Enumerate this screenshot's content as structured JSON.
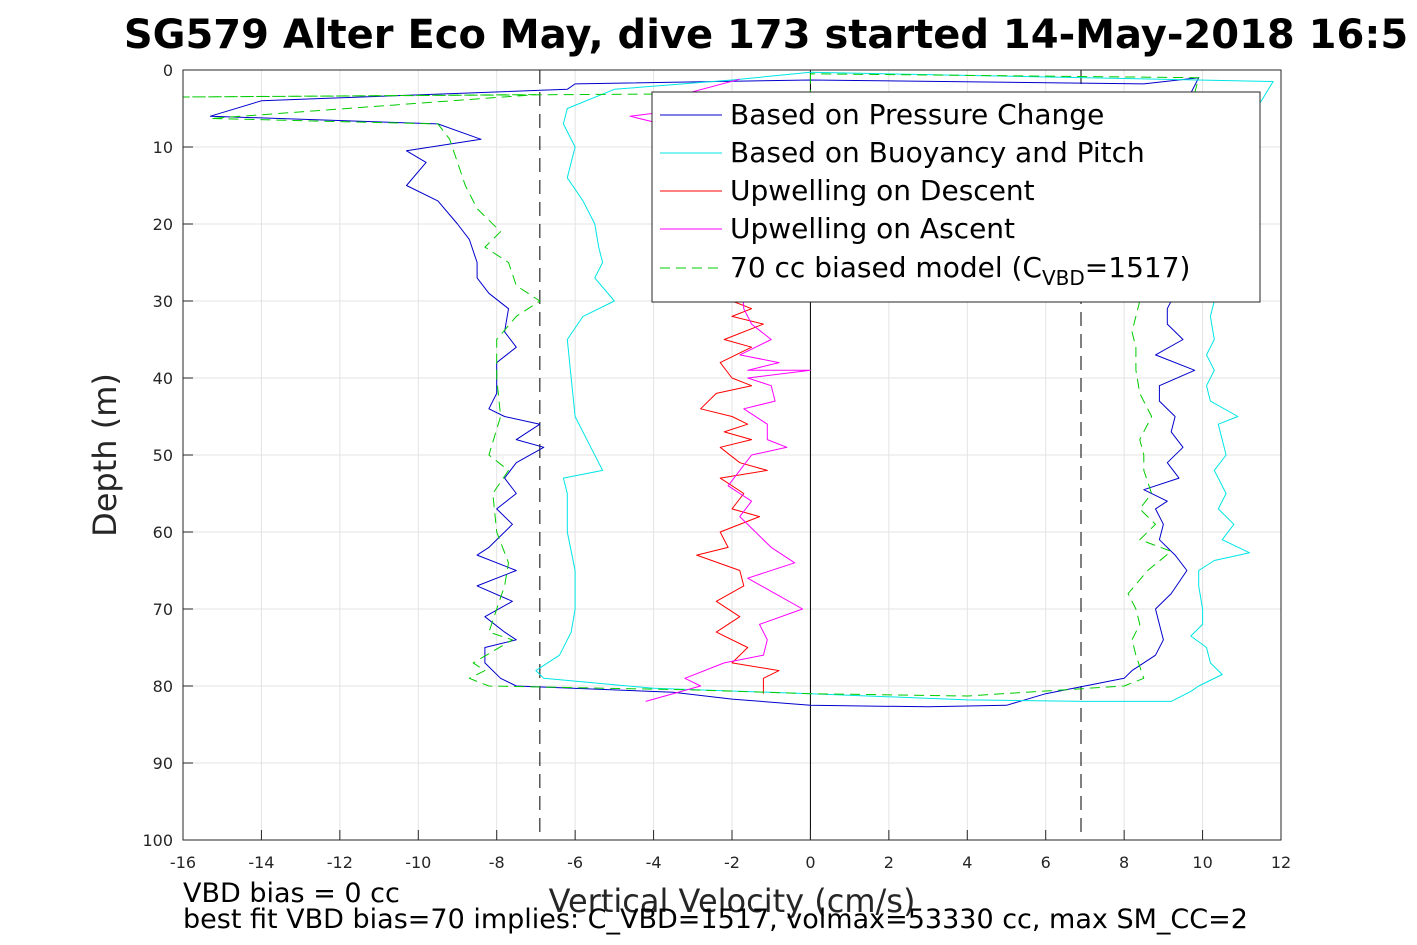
{
  "chart_data": {
    "type": "line",
    "title": "SG579 Alter Eco May, dive 173 started 14-May-2018 16:5",
    "xlabel": "Vertical Velocity (cm/s)",
    "ylabel": "Depth (m)",
    "xlim": [
      -16,
      12
    ],
    "ylim": [
      0,
      100
    ],
    "y_reversed": true,
    "grid": true,
    "legend_position": "top-right",
    "xticks": [
      "-16",
      "-14",
      "-12",
      "-10",
      "-8",
      "-6",
      "-4",
      "-2",
      "0",
      "2",
      "4",
      "6",
      "8",
      "10",
      "12"
    ],
    "yticks": [
      "0",
      "10",
      "20",
      "30",
      "40",
      "50",
      "60",
      "70",
      "80",
      "90",
      "100"
    ],
    "reference_lines": {
      "vertical_solid": [
        0
      ],
      "vertical_dashed": [
        -6.9,
        6.9
      ]
    },
    "legend": {
      "pressure": "Based on Pressure Change",
      "buoyancy": "Based on Buoyancy and Pitch",
      "up_descent": "Upwelling on Descent",
      "up_ascent": "Upwelling on Ascent",
      "model_prefix": "70 cc biased model (C",
      "model_sub": "VBD",
      "model_suffix": "=1517)"
    },
    "series": [
      {
        "name": "Based on Pressure Change",
        "color": "#0000cc",
        "dash": false,
        "points": [
          [
            0,
            1.3
          ],
          [
            -6,
            1.8
          ],
          [
            -6.2,
            2.5
          ],
          [
            -14,
            4
          ],
          [
            -15.3,
            6
          ],
          [
            -9.5,
            7
          ],
          [
            -8.4,
            9
          ],
          [
            -10.3,
            10.5
          ],
          [
            -9.8,
            12
          ],
          [
            -10.3,
            15
          ],
          [
            -9.5,
            17
          ],
          [
            -9,
            20
          ],
          [
            -8.7,
            22
          ],
          [
            -8.5,
            25
          ],
          [
            -8.5,
            27
          ],
          [
            -8.2,
            29
          ],
          [
            -7.7,
            31
          ],
          [
            -7.8,
            34
          ],
          [
            -7.5,
            36
          ],
          [
            -8,
            38
          ],
          [
            -8,
            42
          ],
          [
            -8.2,
            44
          ],
          [
            -7.8,
            45
          ],
          [
            -6.9,
            46
          ],
          [
            -7.5,
            48
          ],
          [
            -6.8,
            49
          ],
          [
            -7.5,
            51
          ],
          [
            -7.8,
            53
          ],
          [
            -7.5,
            55
          ],
          [
            -8,
            57
          ],
          [
            -7.6,
            59
          ],
          [
            -8.2,
            62
          ],
          [
            -8.5,
            63
          ],
          [
            -7.5,
            65
          ],
          [
            -8.5,
            67
          ],
          [
            -7.6,
            69
          ],
          [
            -8.3,
            71
          ],
          [
            -7.8,
            73
          ],
          [
            -7.5,
            74
          ],
          [
            -8.3,
            75
          ],
          [
            -8.3,
            77
          ],
          [
            -7.9,
            79
          ],
          [
            -7.5,
            80
          ],
          [
            -3.5,
            80.8
          ],
          [
            -2,
            81.7
          ],
          [
            0,
            82.5
          ],
          [
            3,
            82.7
          ],
          [
            5,
            82.5
          ],
          [
            6,
            81
          ],
          [
            7,
            80
          ],
          [
            8,
            79
          ],
          [
            8.2,
            78
          ],
          [
            8.8,
            76
          ],
          [
            9,
            74
          ],
          [
            8.9,
            72
          ],
          [
            8.8,
            70
          ],
          [
            9.2,
            68
          ],
          [
            9.6,
            65
          ],
          [
            9.3,
            63
          ],
          [
            8.9,
            61
          ],
          [
            9,
            59
          ],
          [
            8.8,
            57
          ],
          [
            9.1,
            56
          ],
          [
            8.5,
            54.5
          ],
          [
            9.4,
            53
          ],
          [
            9.1,
            51
          ],
          [
            9.5,
            49
          ],
          [
            9.2,
            47
          ],
          [
            9.3,
            45
          ],
          [
            8.9,
            43
          ],
          [
            8.9,
            41
          ],
          [
            9.8,
            39
          ],
          [
            8.8,
            37
          ],
          [
            9.5,
            35
          ],
          [
            9.1,
            33
          ],
          [
            9.1,
            31
          ],
          [
            9.3,
            29
          ],
          [
            9.5,
            22
          ],
          [
            9.7,
            15
          ],
          [
            9.4,
            8
          ],
          [
            9.7,
            3
          ],
          [
            9.9,
            1
          ],
          [
            8.5,
            1.8
          ],
          [
            0,
            1.3
          ]
        ]
      },
      {
        "name": "Based on Buoyancy and Pitch",
        "color": "#00e5e5",
        "dash": false,
        "points": [
          [
            0,
            0.3
          ],
          [
            -2,
            1.3
          ],
          [
            -5,
            2.5
          ],
          [
            -6.2,
            5
          ],
          [
            -6.3,
            7
          ],
          [
            -6,
            10
          ],
          [
            -6.2,
            14
          ],
          [
            -5.8,
            17
          ],
          [
            -5.5,
            20
          ],
          [
            -5.4,
            23
          ],
          [
            -5.3,
            25
          ],
          [
            -5.5,
            27
          ],
          [
            -5,
            30
          ],
          [
            -5.8,
            32
          ],
          [
            -6.2,
            35
          ],
          [
            -6.1,
            40
          ],
          [
            -6,
            45
          ],
          [
            -5.6,
            49
          ],
          [
            -5.3,
            52
          ],
          [
            -6.3,
            53
          ],
          [
            -6.2,
            55
          ],
          [
            -6.2,
            60
          ],
          [
            -6,
            65
          ],
          [
            -6,
            70
          ],
          [
            -6.1,
            73
          ],
          [
            -6.4,
            76
          ],
          [
            -7,
            78
          ],
          [
            -6.8,
            79
          ],
          [
            -4,
            80.3
          ],
          [
            0,
            81
          ],
          [
            4,
            81.8
          ],
          [
            7,
            82
          ],
          [
            9.2,
            82
          ],
          [
            9.7,
            80.7
          ],
          [
            9.9,
            80
          ],
          [
            10.5,
            78.5
          ],
          [
            10.2,
            77
          ],
          [
            10.1,
            75
          ],
          [
            9.7,
            73.5
          ],
          [
            10,
            72
          ],
          [
            10,
            70
          ],
          [
            9.9,
            67
          ],
          [
            9.9,
            65
          ],
          [
            10.3,
            63.7
          ],
          [
            11.2,
            62.7
          ],
          [
            10.5,
            61
          ],
          [
            10.8,
            59
          ],
          [
            10.4,
            57
          ],
          [
            10.6,
            55
          ],
          [
            10.3,
            52
          ],
          [
            10.6,
            50
          ],
          [
            10.5,
            48
          ],
          [
            10.4,
            46
          ],
          [
            10.9,
            45
          ],
          [
            10.2,
            43
          ],
          [
            10.1,
            41
          ],
          [
            10.3,
            39
          ],
          [
            10.1,
            37
          ],
          [
            10.3,
            35
          ],
          [
            10.2,
            32
          ],
          [
            10.3,
            30
          ],
          [
            10.7,
            26
          ],
          [
            10.5,
            21
          ],
          [
            10.3,
            15
          ],
          [
            10.7,
            9
          ],
          [
            11.5,
            4
          ],
          [
            11.8,
            1.5
          ],
          [
            0,
            0.3
          ]
        ]
      },
      {
        "name": "Upwelling on Descent",
        "color": "#ff0000",
        "dash": false,
        "points": [
          [
            -2,
            30
          ],
          [
            -1.5,
            31
          ],
          [
            -2,
            32
          ],
          [
            -1.2,
            33
          ],
          [
            -2.2,
            35
          ],
          [
            -1.5,
            36
          ],
          [
            -2.3,
            38
          ],
          [
            -2,
            40
          ],
          [
            -1.5,
            41
          ],
          [
            -2.4,
            42
          ],
          [
            -2.8,
            44
          ],
          [
            -2,
            45
          ],
          [
            -1.6,
            46
          ],
          [
            -2.2,
            47
          ],
          [
            -1.5,
            48
          ],
          [
            -2.3,
            49
          ],
          [
            -1.8,
            51
          ],
          [
            -1.1,
            52
          ],
          [
            -2.3,
            53
          ],
          [
            -1.7,
            55
          ],
          [
            -2,
            57
          ],
          [
            -1.3,
            58
          ],
          [
            -2.3,
            60
          ],
          [
            -2.1,
            62
          ],
          [
            -2.9,
            63
          ],
          [
            -1.8,
            65
          ],
          [
            -1.7,
            67
          ],
          [
            -2.4,
            69
          ],
          [
            -1.8,
            71
          ],
          [
            -2.4,
            73
          ],
          [
            -1.6,
            75
          ],
          [
            -2,
            77
          ],
          [
            -0.8,
            78
          ],
          [
            -1.2,
            79
          ],
          [
            -1.2,
            81
          ]
        ]
      },
      {
        "name": "Upwelling on Ascent",
        "color": "#ff00ff",
        "dash": false,
        "points": [
          [
            -1.8,
            1.2
          ],
          [
            -3.5,
            3.5
          ],
          [
            -3,
            5
          ],
          [
            -4.6,
            6
          ],
          [
            -3,
            8
          ],
          [
            -2,
            9
          ],
          [
            -1.7,
            31
          ],
          [
            -1.5,
            33
          ],
          [
            -1,
            35
          ],
          [
            -1.8,
            37
          ],
          [
            -0.8,
            38
          ],
          [
            -1.6,
            39
          ],
          [
            0,
            39
          ],
          [
            -1.6,
            40
          ],
          [
            -1,
            41
          ],
          [
            -0.9,
            43
          ],
          [
            -1.7,
            44
          ],
          [
            -1.1,
            46
          ],
          [
            -1.1,
            48
          ],
          [
            -0.6,
            49
          ],
          [
            -1.5,
            50
          ],
          [
            -1.8,
            52
          ],
          [
            -2.1,
            54
          ],
          [
            -1.5,
            56
          ],
          [
            -1.8,
            58
          ],
          [
            -1.4,
            60
          ],
          [
            -1,
            62
          ],
          [
            -0.4,
            64
          ],
          [
            -1.6,
            66
          ],
          [
            -0.9,
            68
          ],
          [
            -0.2,
            70
          ],
          [
            -1.3,
            72
          ],
          [
            -1.1,
            74
          ],
          [
            -1.2,
            76
          ],
          [
            -2.2,
            77
          ],
          [
            -3.2,
            79
          ],
          [
            -2.8,
            80
          ],
          [
            -4.2,
            82
          ]
        ]
      },
      {
        "name": "70 cc biased model (CVBD=1517)",
        "color": "#00cc00",
        "dash": true,
        "points": [
          [
            0,
            0.5
          ],
          [
            0,
            3
          ],
          [
            -16,
            3.5
          ],
          [
            -7,
            3.2
          ],
          [
            -15.3,
            6.3
          ],
          [
            -9.5,
            7
          ],
          [
            -9.2,
            9
          ],
          [
            -9,
            12
          ],
          [
            -8.8,
            15
          ],
          [
            -8.5,
            18
          ],
          [
            -7.9,
            21
          ],
          [
            -8.3,
            23
          ],
          [
            -7.7,
            25
          ],
          [
            -7.5,
            28
          ],
          [
            -6.9,
            30
          ],
          [
            -7.5,
            32
          ],
          [
            -8,
            35
          ],
          [
            -8,
            40
          ],
          [
            -7.9,
            45
          ],
          [
            -8.2,
            50
          ],
          [
            -7.7,
            52
          ],
          [
            -8.1,
            55
          ],
          [
            -8,
            60
          ],
          [
            -7.7,
            64
          ],
          [
            -7.8,
            67
          ],
          [
            -8,
            70
          ],
          [
            -8.2,
            73
          ],
          [
            -7.6,
            74
          ],
          [
            -8.6,
            77
          ],
          [
            -8.3,
            78
          ],
          [
            -8.7,
            79
          ],
          [
            -8.2,
            80
          ],
          [
            -3,
            80.5
          ],
          [
            0,
            81
          ],
          [
            4,
            81.3
          ],
          [
            8,
            80
          ],
          [
            8.5,
            79
          ],
          [
            8.3,
            76
          ],
          [
            8.2,
            74
          ],
          [
            8.4,
            72
          ],
          [
            8.3,
            70
          ],
          [
            8.1,
            68
          ],
          [
            8.6,
            65
          ],
          [
            9.2,
            62.5
          ],
          [
            8.4,
            61
          ],
          [
            8.8,
            59
          ],
          [
            8.4,
            57
          ],
          [
            8.7,
            55
          ],
          [
            8.5,
            52
          ],
          [
            8.5,
            50
          ],
          [
            8.4,
            48
          ],
          [
            8.7,
            45
          ],
          [
            8.4,
            42
          ],
          [
            8.3,
            39
          ],
          [
            8.3,
            36
          ],
          [
            8.2,
            34
          ],
          [
            8.4,
            30
          ],
          [
            8.8,
            22
          ],
          [
            9.2,
            14
          ],
          [
            9.6,
            7
          ],
          [
            9.8,
            3
          ],
          [
            9.9,
            1
          ],
          [
            0,
            0.5
          ]
        ]
      }
    ]
  },
  "footnotes": {
    "line1": "VBD bias = 0 cc",
    "line2": "best fit VBD bias=70 implies: C_VBD=1517, volmax=53330 cc, max SM_CC=2"
  }
}
